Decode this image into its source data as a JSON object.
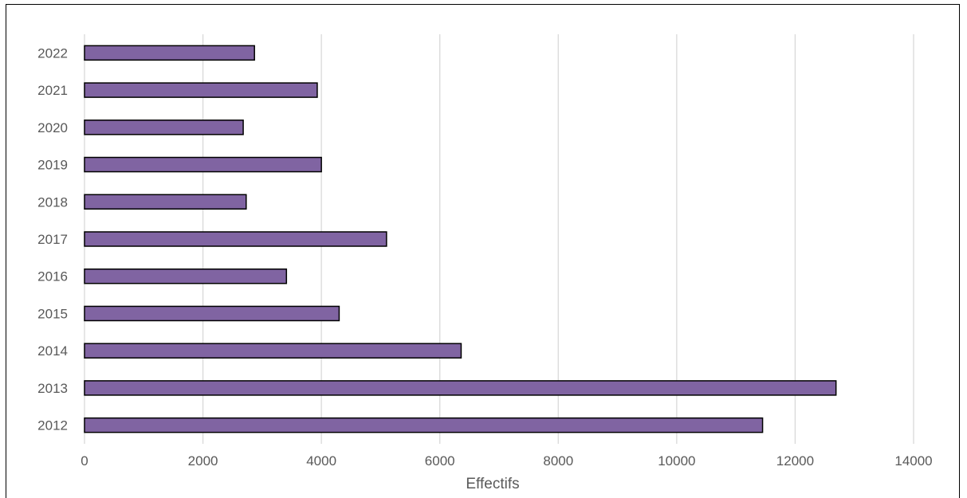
{
  "chart_data": {
    "type": "bar",
    "orientation": "horizontal",
    "title": "",
    "xlabel": "Effectifs",
    "ylabel": "",
    "categories": [
      "2012",
      "2013",
      "2014",
      "2015",
      "2016",
      "2017",
      "2018",
      "2019",
      "2020",
      "2021",
      "2022"
    ],
    "values": [
      11450,
      12690,
      6360,
      4300,
      3410,
      5100,
      2730,
      4000,
      2680,
      3930,
      2870
    ],
    "xlim": [
      0,
      14000
    ],
    "xticks": [
      0,
      2000,
      4000,
      6000,
      8000,
      10000,
      12000,
      14000
    ],
    "grid": "vertical",
    "legend": "none",
    "bar_color": "#8064a2",
    "bar_edge_color": "#000000",
    "grid_color": "#d9d9d9",
    "text_color": "#595959"
  }
}
